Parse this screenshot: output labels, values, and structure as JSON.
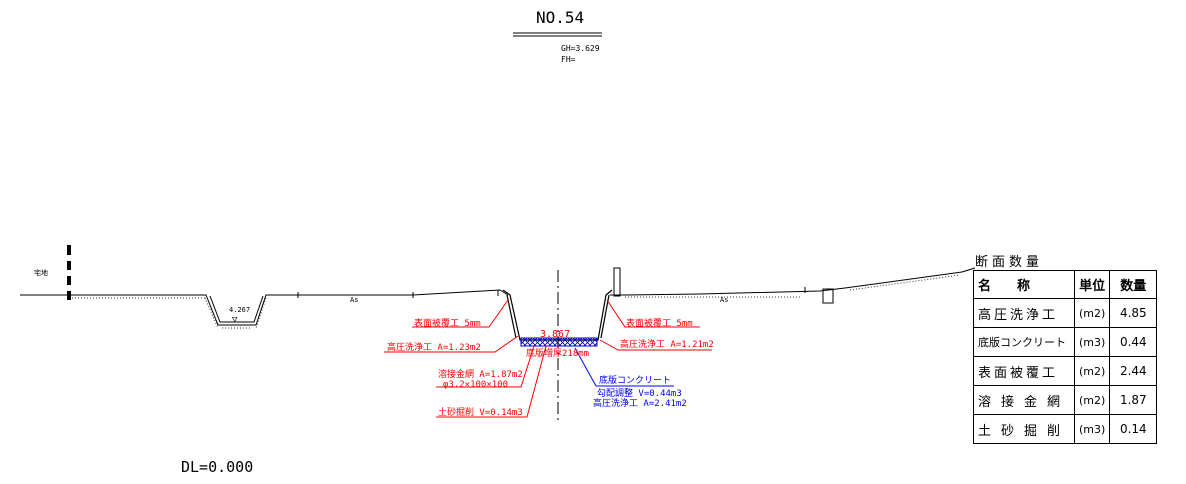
{
  "header": {
    "section_no": "NO.54",
    "gh": "GH=3.629",
    "fh": "FH="
  },
  "footer": {
    "dl": "DL=0.000"
  },
  "drawing": {
    "land_label": "宅地",
    "pavement_left": "As",
    "pavement_right": "As",
    "ditch_level": "4.267",
    "canal_level": "3.867",
    "base_depth": "底版増厚218mm",
    "notes_red_left": [
      "表面被覆工 5mm",
      "高圧洗浄工 A=1.23m2",
      "溶接金網 A=1.87m2",
      "φ3.2×100×100",
      "土砂掘削 V=0.14m3"
    ],
    "notes_red_right": [
      "表面被覆工 5mm",
      "高圧洗浄工 A=1.21m2"
    ],
    "notes_blue": [
      "底版コンクリート",
      "勾配調整 V=0.44m3",
      "高圧洗浄工 A=2.41m2"
    ]
  },
  "quantities": {
    "title": "断面数量",
    "headers": {
      "name": "名　　称",
      "unit": "単位",
      "qty": "数量"
    },
    "rows": [
      {
        "name": "高圧洗浄工",
        "unit": "(m2)",
        "qty": "4.85"
      },
      {
        "name": "底版コンクリート",
        "unit": "(m3)",
        "qty": "0.44"
      },
      {
        "name": "表面被覆工",
        "unit": "(m2)",
        "qty": "2.44"
      },
      {
        "name": "溶接金網",
        "unit": "(m2)",
        "qty": "1.87"
      },
      {
        "name": "土砂掘削",
        "unit": "(m3)",
        "qty": "0.14"
      }
    ]
  }
}
